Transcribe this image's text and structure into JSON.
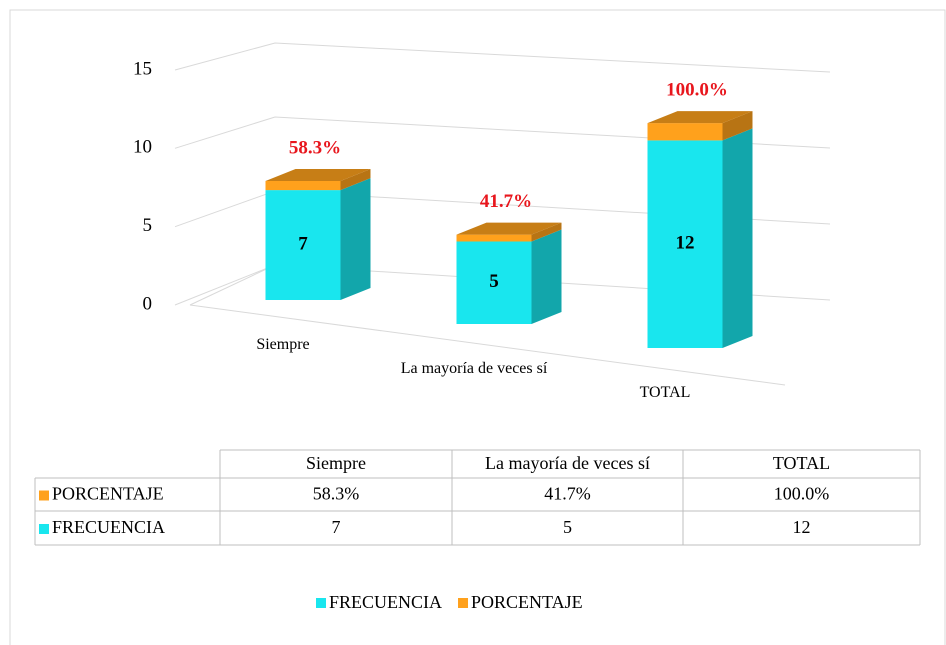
{
  "chart_data": {
    "type": "bar",
    "stacked": true,
    "three_d": true,
    "categories": [
      "Siempre",
      "La mayoría de veces sí",
      "TOTAL"
    ],
    "series": [
      {
        "name": "FRECUENCIA",
        "color": "#19e6ee",
        "values": [
          7,
          5,
          12
        ]
      },
      {
        "name": "PORCENTAJE",
        "color": "#ffa11c",
        "values": [
          0.583,
          0.417,
          1.0
        ],
        "value_labels": [
          "58.3%",
          "41.7%",
          "100.0%"
        ]
      }
    ],
    "ylim": [
      0,
      15
    ],
    "yticks": [
      0,
      5,
      10,
      15
    ],
    "grid": true,
    "legend": "bottom",
    "data_table": true
  }
}
